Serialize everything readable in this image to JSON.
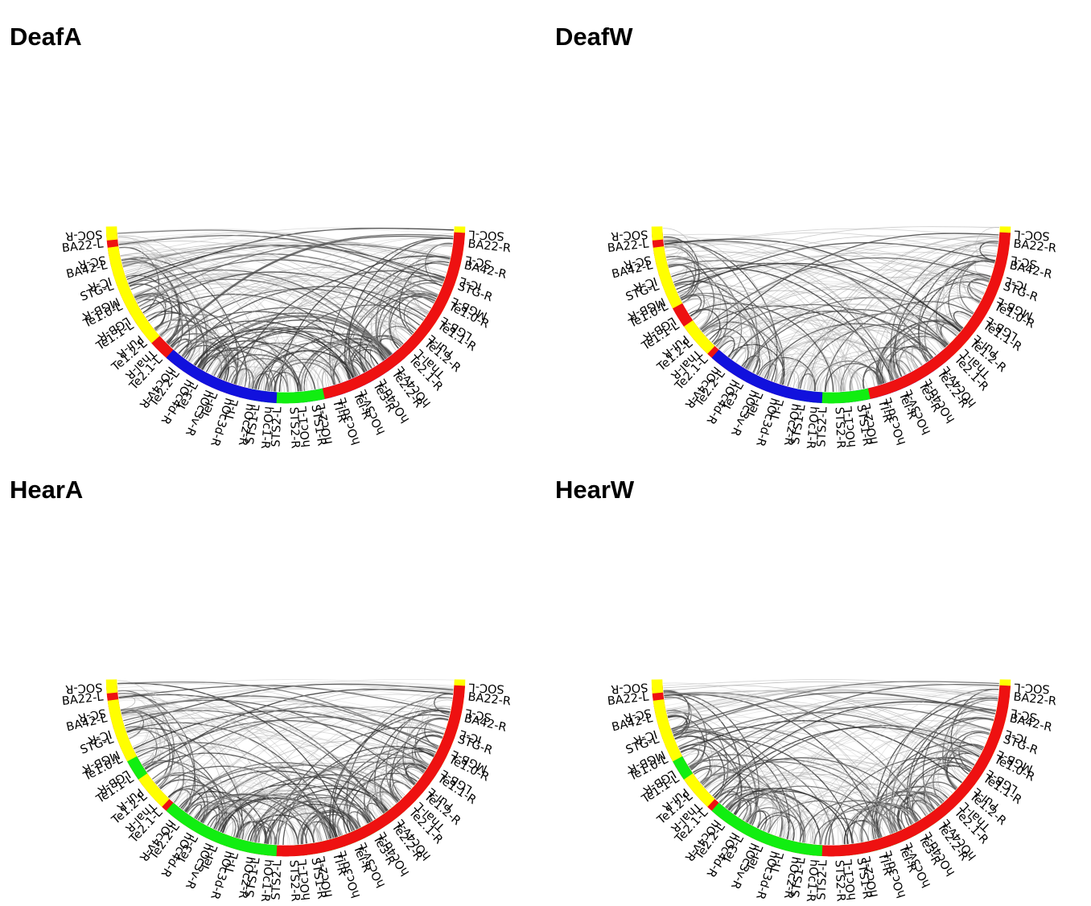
{
  "regions_left": [
    "BA22-L",
    "BA42-L",
    "STG-L",
    "Te1.0-L",
    "Te1.1-L",
    "Te1.2-L",
    "Te2.1-L",
    "Te2.2-L",
    "Te3-L",
    "TeI-L",
    "TI-L",
    "STS1-L",
    "STS2-L",
    "hOc1-L",
    "hOc2-L",
    "hOc3d-L",
    "hOc3v-L",
    "hOc4d-L",
    "hOc4v-L",
    "Thal-L",
    "Pul-L",
    "LGB-L",
    "MGB-L",
    "IC-L",
    "SC-L",
    "SOC-L"
  ],
  "regions_right": [
    "BA22-R",
    "BA42-R",
    "STG-R",
    "Te1.0-R",
    "Te1.1-R",
    "Te1.2-R",
    "Te2.1-R",
    "Te2.2-R",
    "Te3-R",
    "TeI-R",
    "TI-R",
    "STS1-R",
    "STS2-R",
    "hOc1-R",
    "hOc2-R",
    "hOc3d-R",
    "hOc3v-R",
    "hOc4d-R",
    "hOc4v-R",
    "Thal-R",
    "Pul-R",
    "LGB-R",
    "MGB-R",
    "IC-R",
    "SC-R",
    "SOC-R"
  ],
  "colors": {
    "red": "#ee1111",
    "green": "#11ee11",
    "blue": "#1111dd",
    "yellow": "#ffff00"
  },
  "panels": [
    {
      "title": "DeafA",
      "colors": [
        "red",
        "red",
        "red",
        "red",
        "red",
        "red",
        "red",
        "red",
        "red",
        "red",
        "red",
        "green",
        "green",
        "blue",
        "blue",
        "blue",
        "blue",
        "blue",
        "blue",
        "red",
        "yellow",
        "yellow",
        "yellow",
        "yellow",
        "yellow",
        "yellow"
      ]
    },
    {
      "title": "DeafW",
      "colors": [
        "red",
        "red",
        "red",
        "red",
        "red",
        "red",
        "red",
        "red",
        "red",
        "red",
        "red",
        "green",
        "green",
        "blue",
        "blue",
        "blue",
        "blue",
        "blue",
        "blue",
        "yellow",
        "yellow",
        "red",
        "yellow",
        "yellow",
        "yellow",
        "yellow"
      ]
    },
    {
      "title": "HearA",
      "colors": [
        "red",
        "red",
        "red",
        "red",
        "red",
        "red",
        "red",
        "red",
        "red",
        "red",
        "red",
        "red",
        "red",
        "green",
        "green",
        "green",
        "green",
        "green",
        "green",
        "yellow",
        "yellow",
        "green",
        "yellow",
        "yellow",
        "yellow",
        "yellow"
      ]
    },
    {
      "title": "HearW",
      "colors": [
        "red",
        "red",
        "red",
        "red",
        "red",
        "red",
        "red",
        "red",
        "red",
        "red",
        "red",
        "red",
        "red",
        "green",
        "green",
        "green",
        "green",
        "green",
        "green",
        "yellow",
        "yellow",
        "green",
        "yellow",
        "yellow",
        "yellow",
        "yellow"
      ]
    }
  ]
}
